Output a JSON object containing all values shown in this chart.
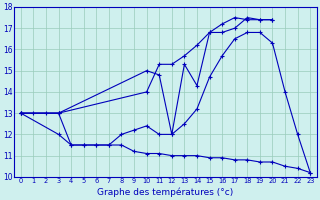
{
  "title": "Graphe des températures (°c)",
  "bg_color": "#cff0ee",
  "line_color": "#0000bb",
  "grid_color": "#99ccbb",
  "x_min": 0,
  "x_max": 23,
  "y_min": 10,
  "y_max": 18,
  "s1_x": [
    0,
    1,
    2,
    3,
    4,
    5,
    6,
    7,
    8,
    9,
    10,
    11,
    12,
    13,
    14,
    15,
    16,
    17,
    18,
    19,
    20,
    21,
    22,
    23
  ],
  "s1_y": [
    13.0,
    13.0,
    13.0,
    13.0,
    11.5,
    11.5,
    11.5,
    11.5,
    11.5,
    11.2,
    11.1,
    11.1,
    11.0,
    11.0,
    11.0,
    10.9,
    10.9,
    10.8,
    10.8,
    10.7,
    10.7,
    10.5,
    10.4,
    10.2
  ],
  "s2_x": [
    0,
    3,
    4,
    5,
    6,
    7,
    8,
    9,
    10,
    11,
    12,
    13,
    14,
    15,
    16,
    17,
    18,
    19,
    20,
    21,
    22,
    23
  ],
  "s2_y": [
    13.0,
    12.0,
    11.5,
    11.5,
    11.5,
    11.5,
    12.0,
    12.2,
    12.4,
    12.0,
    12.0,
    12.5,
    13.2,
    14.7,
    15.7,
    16.5,
    16.8,
    16.8,
    16.3,
    14.0,
    12.0,
    10.2
  ],
  "s3_x": [
    0,
    3,
    10,
    11,
    12,
    13,
    14,
    15,
    16,
    17,
    18,
    19,
    20
  ],
  "s3_y": [
    13.0,
    13.0,
    15.0,
    14.8,
    12.0,
    15.3,
    14.3,
    16.8,
    16.8,
    17.0,
    17.5,
    17.4,
    17.4
  ],
  "s4_x": [
    0,
    3,
    10,
    11,
    12,
    13,
    14,
    15,
    16,
    17,
    18,
    19,
    20
  ],
  "s4_y": [
    13.0,
    13.0,
    14.0,
    15.3,
    15.3,
    15.7,
    16.2,
    16.8,
    17.2,
    17.5,
    17.4,
    17.4,
    17.4
  ]
}
